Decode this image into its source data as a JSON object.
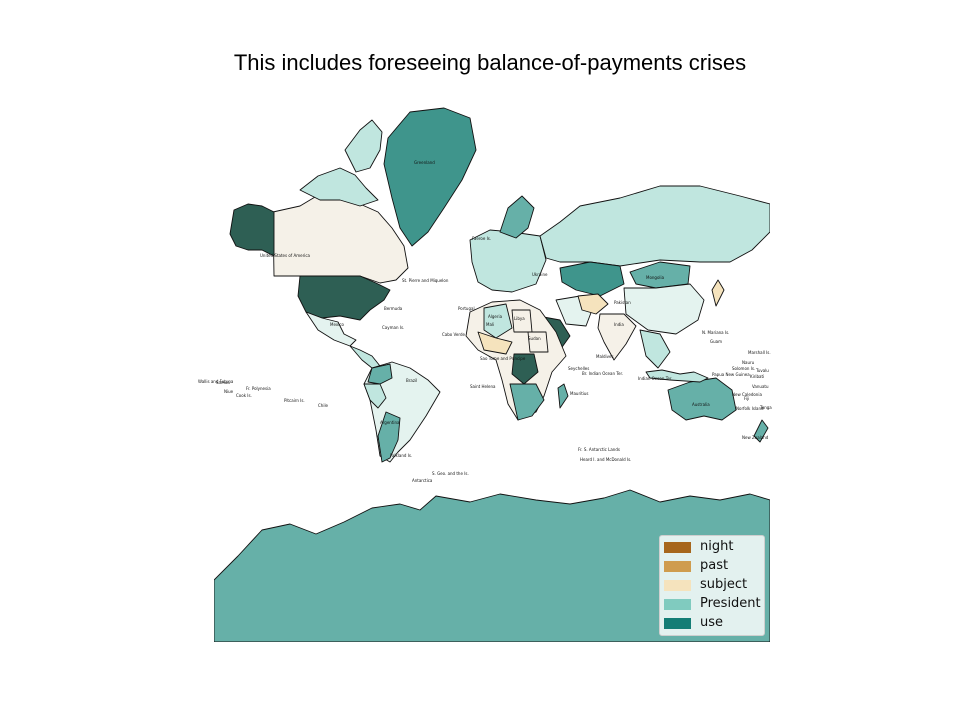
{
  "title": "This includes foreseeing balance-of-payments crises",
  "legend": {
    "items": [
      {
        "label": "night",
        "color": "#a6661c"
      },
      {
        "label": "past",
        "color": "#cf9c4e"
      },
      {
        "label": "subject",
        "color": "#f5e3bd"
      },
      {
        "label": "President",
        "color": "#80cbbf"
      },
      {
        "label": "use",
        "color": "#147d75"
      }
    ]
  },
  "colors": {
    "ocean": "#ffffff",
    "border": "#111111",
    "tone_1": "#f5f1e8",
    "tone_2": "#e4f3ef",
    "tone_3": "#c0e6df",
    "tone_4": "#66b0a8",
    "tone_5": "#3f958c",
    "tone_6": "#2e5f54"
  },
  "regions": [
    {
      "name": "Greenland",
      "tone": "tone_5",
      "label": "Greenland"
    },
    {
      "name": "Canada",
      "tone": "tone_1",
      "label": ""
    },
    {
      "name": "Alaska",
      "tone": "tone_6",
      "label": ""
    },
    {
      "name": "United States of America",
      "tone": "tone_6",
      "label": "United States of America"
    },
    {
      "name": "Mexico",
      "tone": "tone_2",
      "label": "Mexico"
    },
    {
      "name": "Central America",
      "tone": "tone_3",
      "label": ""
    },
    {
      "name": "Brazil",
      "tone": "tone_2",
      "label": "Brazil"
    },
    {
      "name": "Argentina",
      "tone": "tone_4",
      "label": "Argentina"
    },
    {
      "name": "Peru",
      "tone": "tone_3",
      "label": ""
    },
    {
      "name": "Colombia",
      "tone": "tone_4",
      "label": ""
    },
    {
      "name": "Russia",
      "tone": "tone_3",
      "label": ""
    },
    {
      "name": "Kazakhstan",
      "tone": "tone_5",
      "label": ""
    },
    {
      "name": "Mongolia",
      "tone": "tone_4",
      "label": "Mongolia"
    },
    {
      "name": "China",
      "tone": "tone_2",
      "label": ""
    },
    {
      "name": "Scandinavia",
      "tone": "tone_4",
      "label": ""
    },
    {
      "name": "Algeria",
      "tone": "tone_3",
      "label": "Algeria"
    },
    {
      "name": "Libya",
      "tone": "tone_1",
      "label": "Libya"
    },
    {
      "name": "Sudan",
      "tone": "tone_1",
      "label": "Sudan"
    },
    {
      "name": "Saudi Arabia",
      "tone": "tone_6",
      "label": ""
    },
    {
      "name": "Iran",
      "tone": "tone_2",
      "label": ""
    },
    {
      "name": "Afghanistan",
      "tone": "tone_subject",
      "label": ""
    },
    {
      "name": "India",
      "tone": "tone_1",
      "label": "India"
    },
    {
      "name": "Congo",
      "tone": "tone_6",
      "label": ""
    },
    {
      "name": "Southern Africa",
      "tone": "tone_4",
      "label": ""
    },
    {
      "name": "Madagascar",
      "tone": "tone_4",
      "label": ""
    },
    {
      "name": "Australia",
      "tone": "tone_4",
      "label": "Australia"
    },
    {
      "name": "Indonesia",
      "tone": "tone_3",
      "label": ""
    },
    {
      "name": "Antarctica",
      "tone": "tone_4",
      "label": "Antarctica"
    }
  ],
  "labels": [
    "Bermuda",
    "St. Pierre and Miquelon",
    "Faeroe Is.",
    "Portugal",
    "Ukraine",
    "Pakistan",
    "Maldives",
    "Seychelles",
    "Br. Indian Ocean Ter.",
    "Mauritius",
    "Saint Helena",
    "Fr. S. Antarctic Lands",
    "Heard I. and McDonald Is.",
    "S. Geo. and the Is.",
    "Falkland Is.",
    "Chile",
    "Pitcairn Is.",
    "Fr. Polynesia",
    "Cook Is.",
    "Niue",
    "Samoa",
    "Wallis and Futuna",
    "N. Mariana Is.",
    "Guam",
    "Marshall Is.",
    "Nauru",
    "Kiribati",
    "New Caledonia",
    "Vanuatu",
    "Norfolk Island",
    "New Zealand",
    "Indian Ocean Ter.",
    "Solomon Is.",
    "Papua New Guinea",
    "Mali",
    "Cabo Verde",
    "Sao Tome and Principe",
    "Cayman Is.",
    "Tonga",
    "Fiji",
    "Tuvalu"
  ]
}
